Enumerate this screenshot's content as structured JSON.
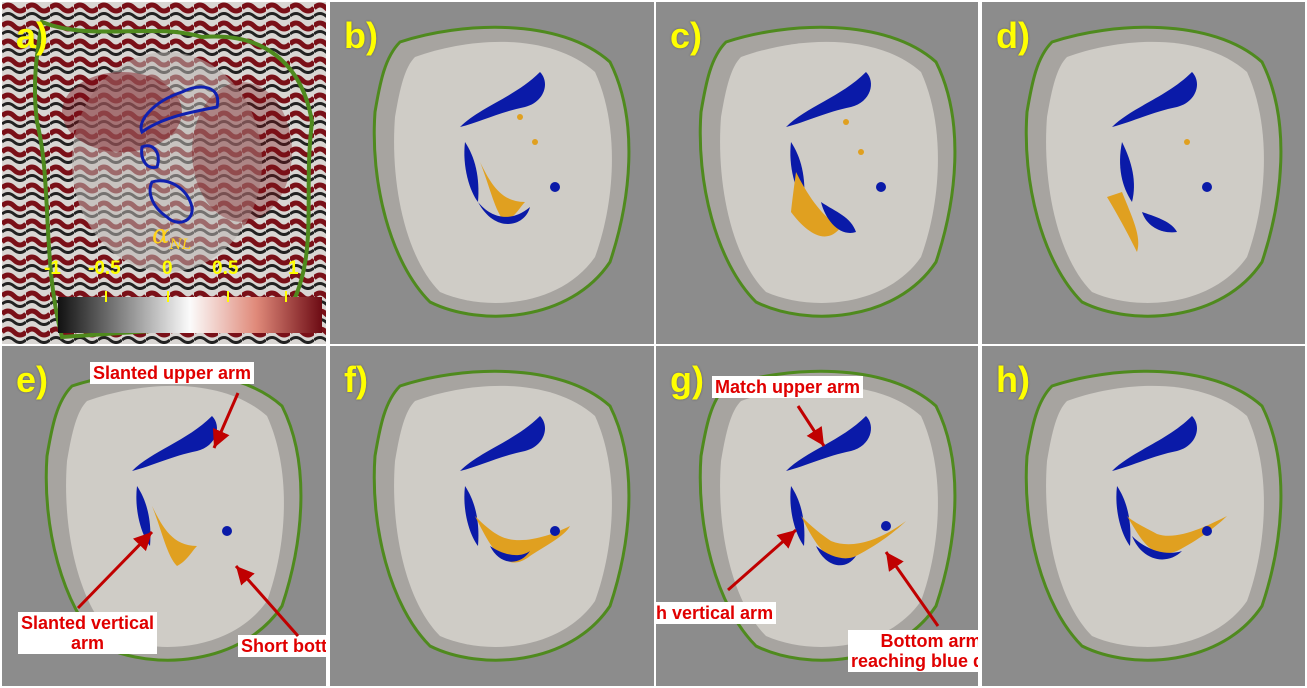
{
  "panels": [
    {
      "id": "a",
      "label": "a)"
    },
    {
      "id": "b",
      "label": "b)"
    },
    {
      "id": "c",
      "label": "c)"
    },
    {
      "id": "d",
      "label": "d)"
    },
    {
      "id": "e",
      "label": "e)"
    },
    {
      "id": "f",
      "label": "f)"
    },
    {
      "id": "g",
      "label": "g)"
    },
    {
      "id": "h",
      "label": "h)"
    }
  ],
  "colorbar": {
    "symbol": "α",
    "subscript": "NL",
    "ticks": [
      "-1",
      "-0.5",
      "0",
      "0.5",
      "1"
    ]
  },
  "annotations": {
    "e_upper": "Slanted upper arm",
    "e_vertical_line1": "Slanted vertical",
    "e_vertical_line2": "arm",
    "e_bottom": "Short bottom arm",
    "g_upper": "Match upper arm",
    "g_vertical": "Match vertical arm",
    "g_bottom_line1": "Bottom arm",
    "g_bottom_line2": "reaching blue dots"
  },
  "colors": {
    "label_yellow": "#ffff00",
    "annotation_red": "#e00000",
    "contour_green": "#4f8a1e",
    "blue_blobs": "#0a1aa8",
    "orange_blobs": "#e0a020",
    "umbra_gray": "#cfccc6"
  }
}
